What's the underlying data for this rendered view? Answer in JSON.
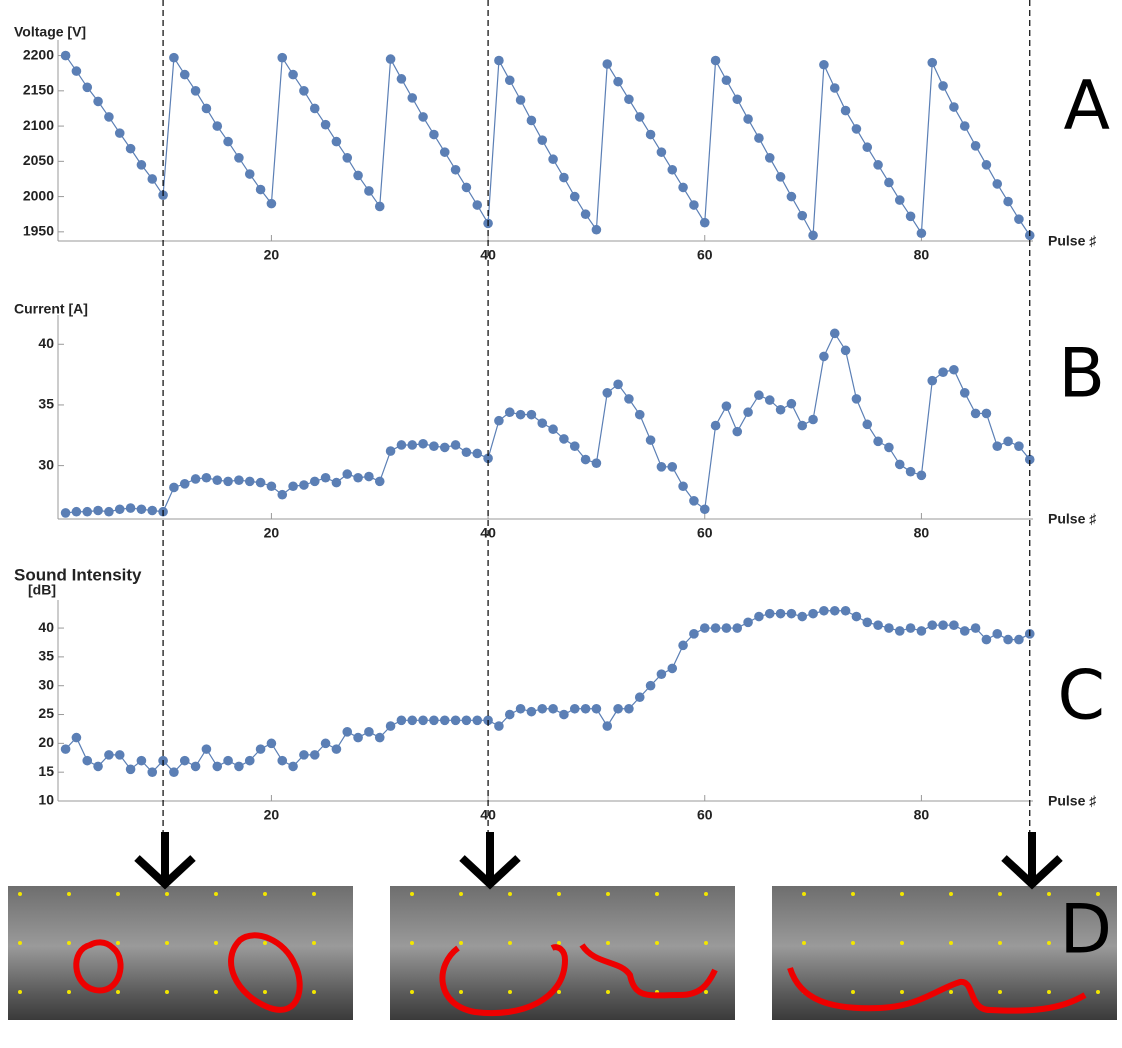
{
  "panels": [
    "A",
    "B",
    "C",
    "D"
  ],
  "reference_lines": [
    10,
    40,
    90
  ],
  "chart_data": [
    {
      "type": "line",
      "y_label": [
        "Voltage [V]"
      ],
      "x_label": "Pulse ♯",
      "color": "#5b7fb5",
      "x": [
        1,
        2,
        3,
        4,
        5,
        6,
        7,
        8,
        9,
        10,
        11,
        12,
        13,
        14,
        15,
        16,
        17,
        18,
        19,
        20,
        21,
        22,
        23,
        24,
        25,
        26,
        27,
        28,
        29,
        30,
        31,
        32,
        33,
        34,
        35,
        36,
        37,
        38,
        39,
        40,
        41,
        42,
        43,
        44,
        45,
        46,
        47,
        48,
        49,
        50,
        51,
        52,
        53,
        54,
        55,
        56,
        57,
        58,
        59,
        60,
        61,
        62,
        63,
        64,
        65,
        66,
        67,
        68,
        69,
        70,
        71,
        72,
        73,
        74,
        75,
        76,
        77,
        78,
        79,
        80,
        81,
        82,
        83,
        84,
        85,
        86,
        87,
        88,
        89,
        90
      ],
      "values": [
        2200,
        2178,
        2155,
        2135,
        2113,
        2090,
        2068,
        2045,
        2025,
        2002,
        2197,
        2173,
        2150,
        2125,
        2100,
        2078,
        2055,
        2032,
        2010,
        1990,
        2197,
        2173,
        2150,
        2125,
        2102,
        2078,
        2055,
        2030,
        2008,
        1986,
        2195,
        2167,
        2140,
        2113,
        2088,
        2063,
        2038,
        2013,
        1988,
        1962,
        2193,
        2165,
        2137,
        2108,
        2080,
        2053,
        2027,
        2000,
        1975,
        1953,
        2188,
        2163,
        2138,
        2113,
        2088,
        2063,
        2038,
        2013,
        1988,
        1963,
        2193,
        2165,
        2138,
        2110,
        2083,
        2055,
        2028,
        2000,
        1973,
        1945,
        2187,
        2154,
        2122,
        2096,
        2070,
        2045,
        2020,
        1995,
        1972,
        1948,
        2190,
        2157,
        2127,
        2100,
        2072,
        2045,
        2018,
        1993,
        1968,
        1945
      ],
      "xlim": [
        0.3,
        90.3
      ],
      "ylim": [
        1937,
        2215
      ],
      "xticks": [
        20,
        40,
        60,
        80
      ],
      "yticks": [
        1950,
        2000,
        2050,
        2100,
        2150,
        2200
      ]
    },
    {
      "type": "line",
      "y_label": [
        "Current [A]"
      ],
      "x_label": "Pulse ♯",
      "color": "#5b7fb5",
      "x": [
        1,
        2,
        3,
        4,
        5,
        6,
        7,
        8,
        9,
        10,
        11,
        12,
        13,
        14,
        15,
        16,
        17,
        18,
        19,
        20,
        21,
        22,
        23,
        24,
        25,
        26,
        27,
        28,
        29,
        30,
        31,
        32,
        33,
        34,
        35,
        36,
        37,
        38,
        39,
        40,
        41,
        42,
        43,
        44,
        45,
        46,
        47,
        48,
        49,
        50,
        51,
        52,
        53,
        54,
        55,
        56,
        57,
        58,
        59,
        60,
        61,
        62,
        63,
        64,
        65,
        66,
        67,
        68,
        69,
        70,
        71,
        72,
        73,
        74,
        75,
        76,
        77,
        78,
        79,
        80,
        81,
        82,
        83,
        84,
        85,
        86,
        87,
        88,
        89,
        90
      ],
      "values": [
        26.1,
        26.2,
        26.2,
        26.3,
        26.2,
        26.4,
        26.5,
        26.4,
        26.3,
        26.2,
        28.2,
        28.5,
        28.9,
        29.0,
        28.8,
        28.7,
        28.8,
        28.7,
        28.6,
        28.3,
        27.6,
        28.3,
        28.4,
        28.7,
        29.0,
        28.6,
        29.3,
        29.0,
        29.1,
        28.7,
        31.2,
        31.7,
        31.7,
        31.8,
        31.6,
        31.5,
        31.7,
        31.1,
        31.0,
        30.6,
        33.7,
        34.4,
        34.2,
        34.2,
        33.5,
        33.0,
        32.2,
        31.6,
        30.5,
        30.2,
        36.0,
        36.7,
        35.5,
        34.2,
        32.1,
        29.9,
        29.9,
        28.3,
        27.1,
        26.4,
        33.3,
        34.9,
        32.8,
        34.4,
        35.8,
        35.4,
        34.6,
        35.1,
        33.3,
        33.8,
        39.0,
        40.9,
        39.5,
        35.5,
        33.4,
        32.0,
        31.5,
        30.1,
        29.5,
        29.2,
        37.0,
        37.7,
        37.9,
        36.0,
        34.3,
        34.3,
        31.6,
        32.0,
        31.6,
        30.5
      ],
      "xlim": [
        0.3,
        90.3
      ],
      "ylim": [
        25.6,
        42
      ],
      "xticks": [
        20,
        40,
        60,
        80
      ],
      "yticks": [
        30,
        35,
        40
      ]
    },
    {
      "type": "line",
      "y_label": [
        "Sound Intensity",
        "[dB]"
      ],
      "x_label": "Pulse ♯",
      "color": "#5b7fb5",
      "x": [
        1,
        2,
        3,
        4,
        5,
        6,
        7,
        8,
        9,
        10,
        11,
        12,
        13,
        14,
        15,
        16,
        17,
        18,
        19,
        20,
        21,
        22,
        23,
        24,
        25,
        26,
        27,
        28,
        29,
        30,
        31,
        32,
        33,
        34,
        35,
        36,
        37,
        38,
        39,
        40,
        41,
        42,
        43,
        44,
        45,
        46,
        47,
        48,
        49,
        50,
        51,
        52,
        53,
        54,
        55,
        56,
        57,
        58,
        59,
        60,
        61,
        62,
        63,
        64,
        65,
        66,
        67,
        68,
        69,
        70,
        71,
        72,
        73,
        74,
        75,
        76,
        77,
        78,
        79,
        80,
        81,
        82,
        83,
        84,
        85,
        86,
        87,
        88,
        89,
        90
      ],
      "values": [
        19,
        21,
        17,
        16,
        18,
        18,
        15.5,
        17,
        15,
        17,
        15,
        17,
        16,
        19,
        16,
        17,
        16,
        17,
        19,
        20,
        17,
        16,
        18,
        18,
        20,
        19,
        22,
        21,
        22,
        21,
        23,
        24,
        24,
        24,
        24,
        24,
        24,
        24,
        24,
        24,
        23,
        25,
        26,
        25.5,
        26,
        26,
        25,
        26,
        26,
        26,
        23,
        26,
        26,
        28,
        30,
        32,
        33,
        37,
        39,
        40,
        40,
        40,
        40,
        41,
        42,
        42.5,
        42.5,
        42.5,
        42,
        42.5,
        43,
        43,
        43,
        42,
        41,
        40.5,
        40,
        39.5,
        40,
        39.5,
        40.5,
        40.5,
        40.5,
        39.5,
        40,
        38,
        39,
        38,
        38,
        39
      ],
      "xlim": [
        0.3,
        90.3
      ],
      "ylim": [
        10,
        44
      ],
      "xticks": [
        20,
        40,
        60,
        80
      ],
      "yticks": [
        10,
        15,
        20,
        25,
        30,
        35,
        40
      ]
    }
  ]
}
